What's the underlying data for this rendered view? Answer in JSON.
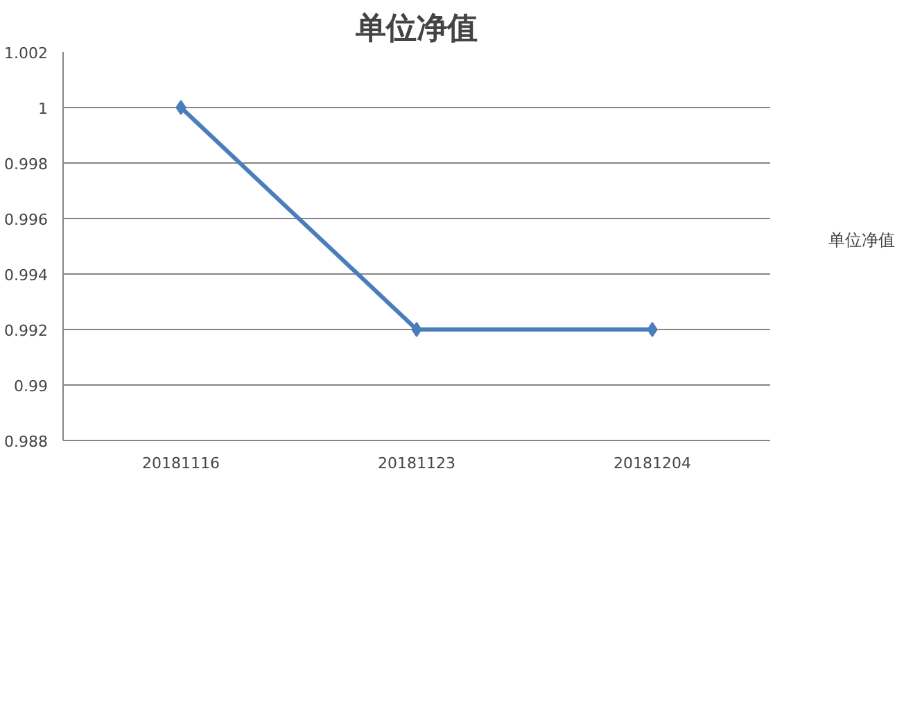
{
  "chart_data": {
    "type": "line",
    "title": "单位净值",
    "categories": [
      "20181116",
      "20181123",
      "20181204"
    ],
    "series": [
      {
        "name": "单位净值",
        "color": "#4a7ebb",
        "values": [
          1.0,
          0.992,
          0.992
        ]
      }
    ],
    "ylim": [
      0.988,
      1.002
    ],
    "yticks": [
      0.988,
      0.99,
      0.992,
      0.994,
      0.996,
      0.998,
      1,
      1.002
    ],
    "grid": "y",
    "legend": "right",
    "marker": "diamond",
    "line_style": "solid"
  }
}
